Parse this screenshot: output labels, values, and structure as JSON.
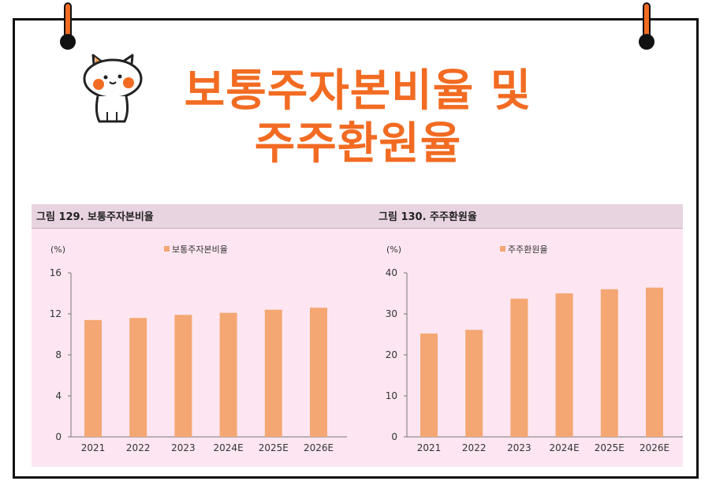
{
  "title": {
    "line1": "보통주자본비율 및",
    "line2": "주주환원율"
  },
  "colors": {
    "accent": "#f26b22",
    "bar": "#f4a773",
    "panel_bg": "#fde6f1",
    "panel_header": "#e8d4e0"
  },
  "figures": [
    {
      "title": "그림 129. 보통주자본비율"
    },
    {
      "title": "그림 130. 주주환원율"
    }
  ],
  "chart_data": [
    {
      "type": "bar",
      "unit_label": "(%)",
      "categories": [
        "2021",
        "2022",
        "2023",
        "2024E",
        "2025E",
        "2026E"
      ],
      "series": [
        {
          "name": "보통주자본비율",
          "values": [
            11.4,
            11.6,
            11.9,
            12.1,
            12.4,
            12.6
          ]
        }
      ],
      "ylim": [
        0,
        16
      ],
      "yticks": [
        "0",
        "4",
        "8",
        "12",
        "16"
      ],
      "ytick_values": [
        0,
        4,
        8,
        12,
        16
      ],
      "legend": "top-center",
      "grid": false
    },
    {
      "type": "bar",
      "unit_label": "(%)",
      "categories": [
        "2021",
        "2022",
        "2023",
        "2024E",
        "2025E",
        "2026E"
      ],
      "series": [
        {
          "name": "주주환원율",
          "values": [
            25.2,
            26.1,
            33.7,
            35.0,
            36.0,
            36.4
          ]
        }
      ],
      "ylim": [
        0,
        40
      ],
      "yticks": [
        "0",
        "10",
        "20",
        "30",
        "40"
      ],
      "ytick_values": [
        0,
        10,
        20,
        30,
        40
      ],
      "legend": "top-center",
      "grid": false
    }
  ]
}
